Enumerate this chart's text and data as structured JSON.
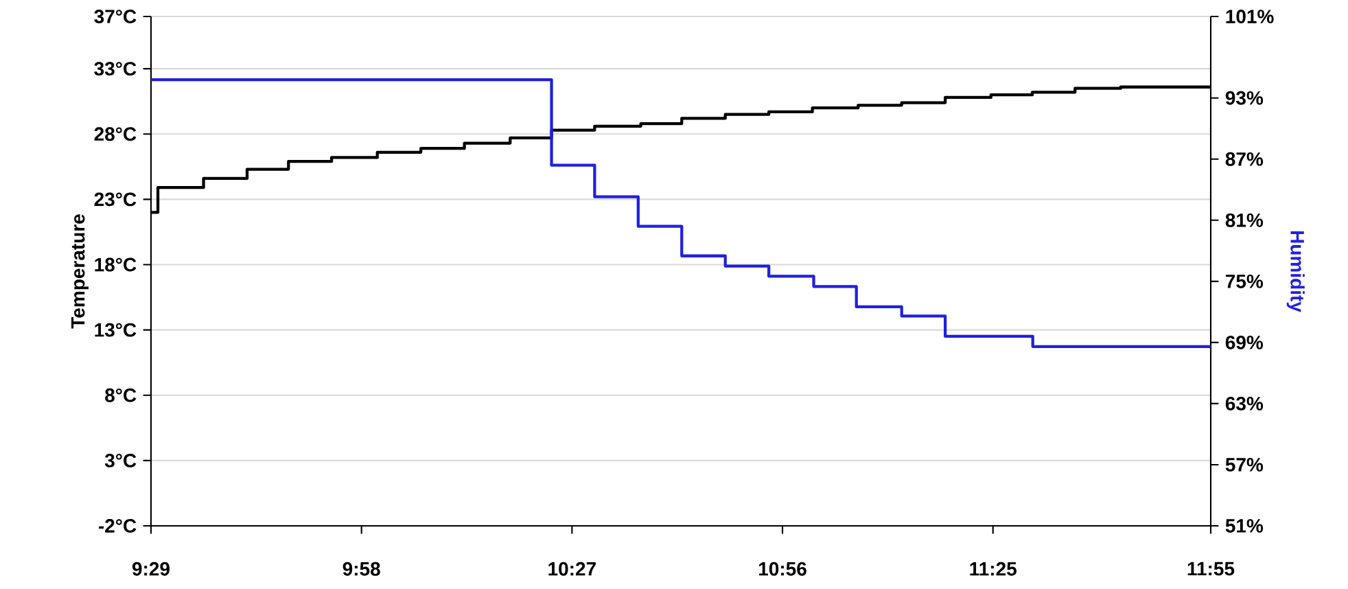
{
  "chart_data": {
    "type": "step",
    "ylabel": "Temperature",
    "y2label": "Humidity",
    "xlim": [
      9.48333,
      11.91667
    ],
    "xticks": [
      {
        "value": 9.48333,
        "label": "9:29"
      },
      {
        "value": 9.96667,
        "label": "9:58"
      },
      {
        "value": 10.45,
        "label": "10:27"
      },
      {
        "value": 10.93333,
        "label": "10:56"
      },
      {
        "value": 11.41667,
        "label": "11:25"
      },
      {
        "value": 11.91667,
        "label": "11:55"
      }
    ],
    "ylim": [
      -2,
      37
    ],
    "yticks": [
      {
        "value": -2,
        "label": "-2°C"
      },
      {
        "value": 3,
        "label": "3°C"
      },
      {
        "value": 8,
        "label": "8°C"
      },
      {
        "value": 13,
        "label": "13°C"
      },
      {
        "value": 18,
        "label": "18°C"
      },
      {
        "value": 23,
        "label": "23°C"
      },
      {
        "value": 28,
        "label": "28°C"
      },
      {
        "value": 33,
        "label": "33°C"
      },
      {
        "value": 37,
        "label": "37°C"
      }
    ],
    "y2lim": [
      51,
      101
    ],
    "y2ticks": [
      {
        "value": 51,
        "label": "51%"
      },
      {
        "value": 57,
        "label": "57%"
      },
      {
        "value": 63,
        "label": "63%"
      },
      {
        "value": 69,
        "label": "69%"
      },
      {
        "value": 75,
        "label": "75%"
      },
      {
        "value": 81,
        "label": "81%"
      },
      {
        "value": 87,
        "label": "87%"
      },
      {
        "value": 93,
        "label": "93%"
      },
      {
        "value": 101,
        "label": "101%"
      }
    ],
    "grid": "y",
    "series": [
      {
        "color": "#000000",
        "x": [
          9.48333,
          9.4992,
          9.604,
          9.704,
          9.799,
          9.898,
          10.003,
          10.103,
          10.203,
          10.308,
          10.403,
          10.502,
          10.608,
          10.702,
          10.802,
          10.902,
          11.002,
          11.107,
          11.207,
          11.307,
          11.412,
          11.507,
          11.605,
          11.71,
          11.91667
        ],
        "values": [
          22.0,
          23.9,
          24.6,
          25.3,
          25.9,
          26.2,
          26.6,
          26.9,
          27.3,
          27.7,
          28.3,
          28.6,
          28.8,
          29.2,
          29.5,
          29.7,
          30.0,
          30.2,
          30.4,
          30.8,
          31.0,
          31.2,
          31.5,
          31.6,
          31.6
        ]
      },
      {
        "color": "#2020e0",
        "axis": "y2",
        "x": [
          9.48333,
          10.403,
          10.502,
          10.602,
          10.702,
          10.802,
          10.902,
          11.005,
          11.103,
          11.207,
          11.307,
          11.508,
          11.91667
        ],
        "values": [
          94.8,
          86.4,
          83.3,
          80.4,
          77.5,
          76.5,
          75.5,
          74.5,
          72.5,
          71.6,
          69.6,
          68.6,
          68.6
        ]
      }
    ]
  }
}
